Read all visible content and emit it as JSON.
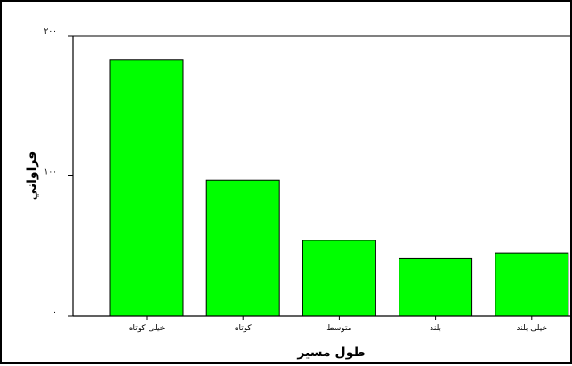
{
  "chart_data": {
    "type": "bar",
    "title": "",
    "xlabel": "طول مسير",
    "ylabel": "فراواني",
    "categories": [
      "خيلی كوتاه",
      "كوتاه",
      "متوسط",
      "بلند",
      "خيلی بلند"
    ],
    "values": [
      183,
      97,
      54,
      41,
      45
    ],
    "ylim": [
      0,
      200
    ],
    "yticks": [
      0,
      100,
      200
    ],
    "ytick_labels": [
      "۰",
      "۱۰۰",
      "۲۰۰"
    ],
    "bar_color": "#00ff00",
    "edge_color": "#000000",
    "grid": false,
    "legend": "none"
  }
}
